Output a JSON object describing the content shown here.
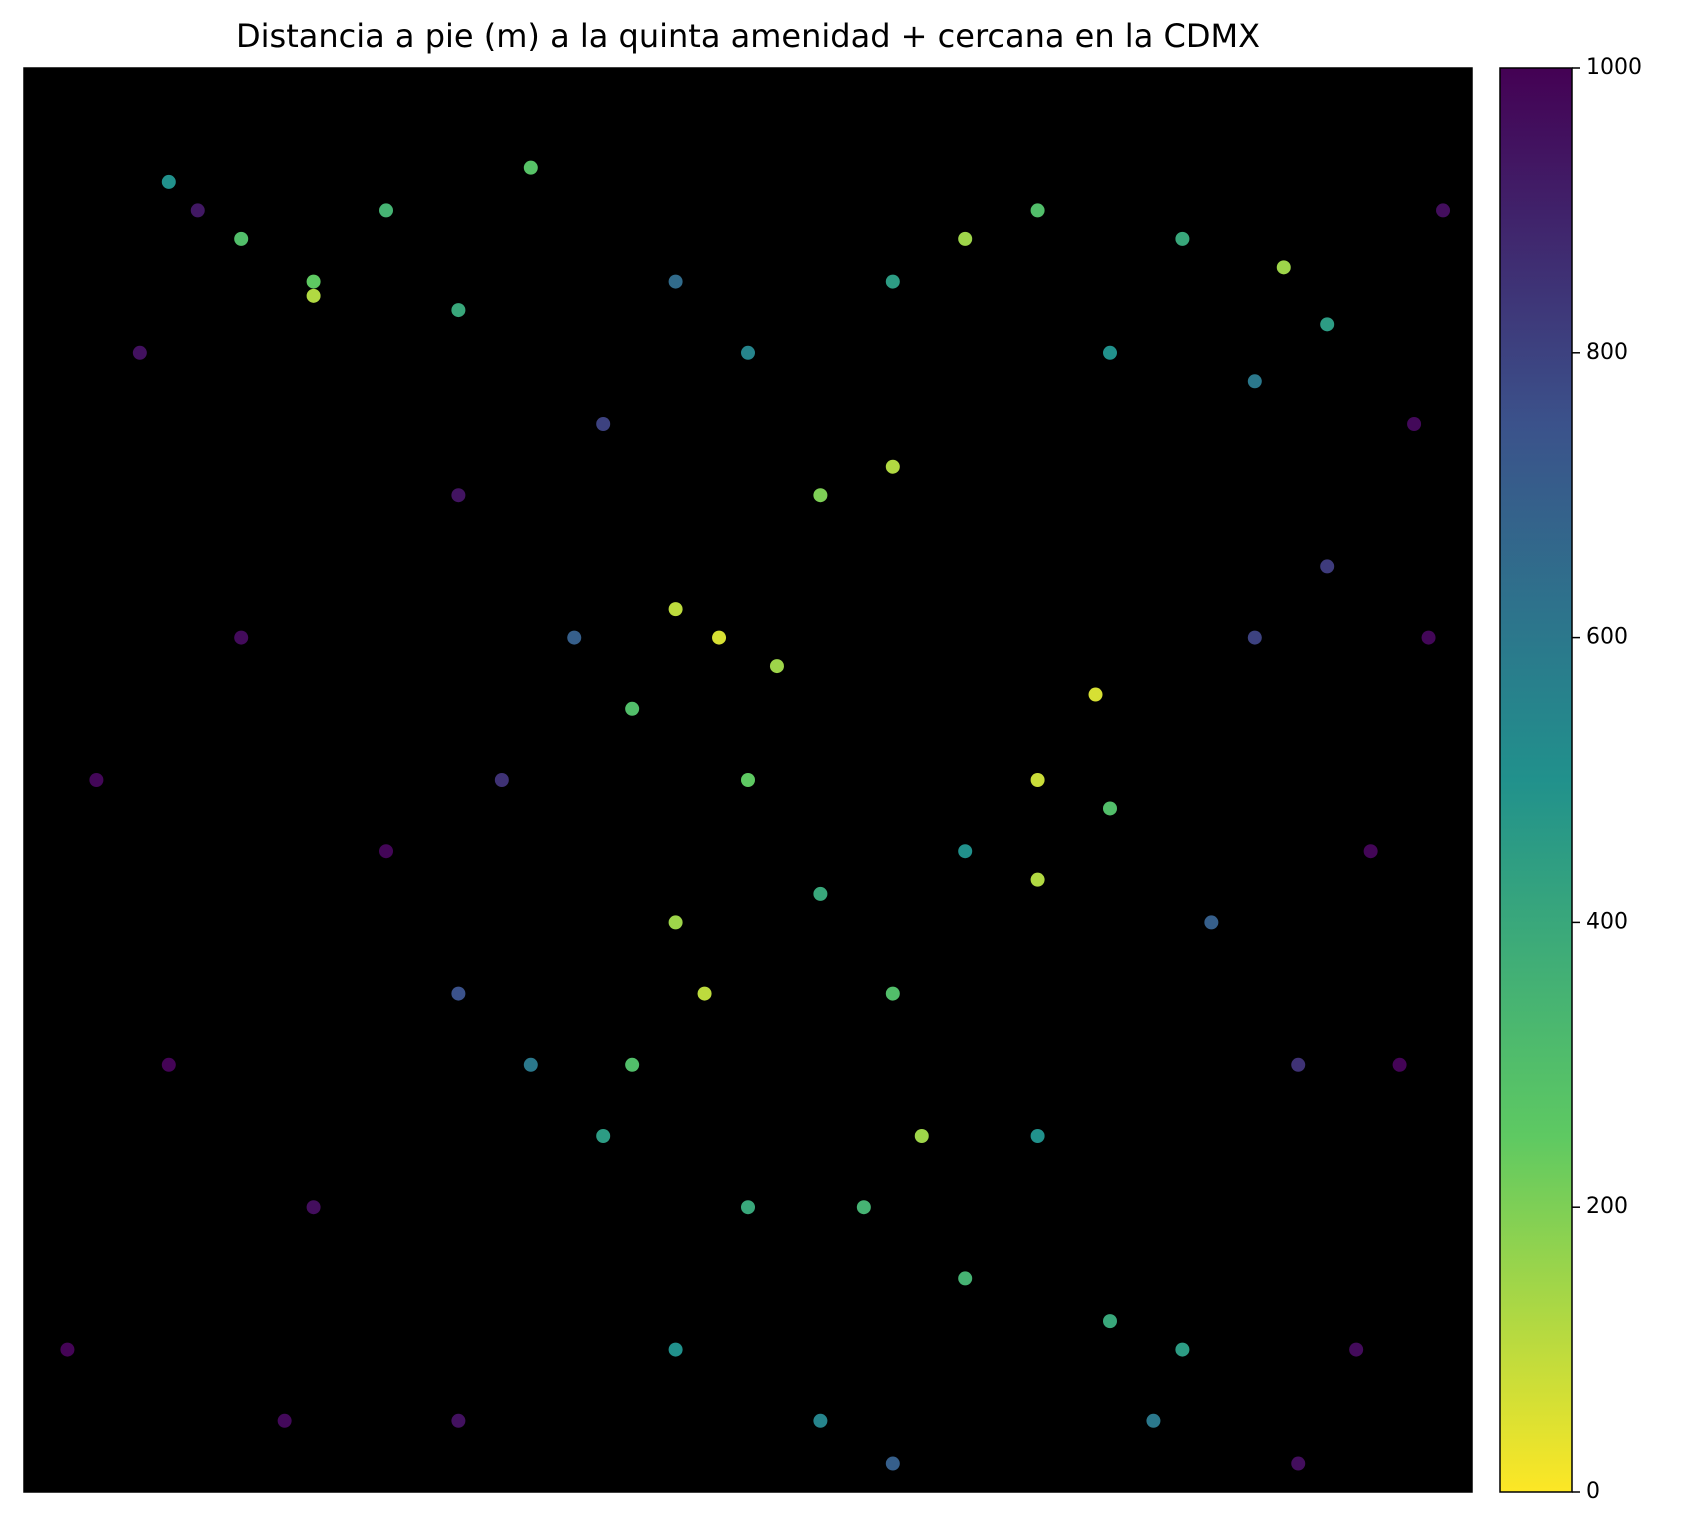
{
  "chart_data": {
    "type": "scatter",
    "title": "Distancia a pie (m) a la quinta amenidad + cercana en la CDMX",
    "xlim": [
      0,
      1
    ],
    "ylim": [
      0,
      1
    ],
    "colormap": "viridis_r",
    "clim": [
      0,
      1000
    ],
    "cticks": [
      0,
      200,
      400,
      600,
      800,
      1000
    ],
    "background": "#000000",
    "x": [
      0.05,
      0.1,
      0.15,
      0.2,
      0.08,
      0.25,
      0.03,
      0.18,
      0.3,
      0.12,
      0.2,
      0.2,
      0.15,
      0.25,
      0.3,
      0.1,
      0.35,
      0.45,
      0.48,
      0.52,
      0.55,
      0.6,
      0.42,
      0.5,
      0.45,
      0.47,
      0.55,
      0.6,
      0.65,
      0.7,
      0.74,
      0.7,
      0.75,
      0.62,
      0.58,
      0.5,
      0.4,
      0.35,
      0.42,
      0.45,
      0.55,
      0.65,
      0.75,
      0.8,
      0.78,
      0.7,
      0.65,
      0.7,
      0.8,
      0.87,
      0.75,
      0.85,
      0.9,
      0.6,
      0.5,
      0.45,
      0.38,
      0.3,
      0.85,
      0.82,
      0.88,
      0.4,
      0.33,
      0.9,
      0.95,
      0.97,
      0.92,
      0.98,
      0.93,
      0.96,
      0.3,
      0.6,
      0.88
    ],
    "y": [
      0.5,
      0.3,
      0.6,
      0.2,
      0.8,
      0.45,
      0.1,
      0.05,
      0.7,
      0.9,
      0.85,
      0.84,
      0.88,
      0.9,
      0.83,
      0.92,
      0.93,
      0.62,
      0.6,
      0.58,
      0.7,
      0.72,
      0.55,
      0.5,
      0.4,
      0.35,
      0.42,
      0.35,
      0.45,
      0.5,
      0.56,
      0.43,
      0.48,
      0.25,
      0.2,
      0.2,
      0.25,
      0.3,
      0.3,
      0.1,
      0.05,
      0.15,
      0.12,
      0.1,
      0.05,
      0.25,
      0.88,
      0.9,
      0.88,
      0.86,
      0.8,
      0.78,
      0.82,
      0.85,
      0.8,
      0.85,
      0.6,
      0.35,
      0.6,
      0.4,
      0.3,
      0.75,
      0.5,
      0.65,
      0.3,
      0.6,
      0.1,
      0.9,
      0.45,
      0.75,
      0.05,
      0.02,
      0.02
    ],
    "values": [
      980,
      990,
      970,
      960,
      950,
      985,
      990,
      975,
      940,
      930,
      250,
      120,
      300,
      350,
      400,
      500,
      280,
      100,
      60,
      150,
      200,
      120,
      300,
      250,
      150,
      100,
      400,
      300,
      500,
      80,
      60,
      120,
      300,
      150,
      350,
      400,
      450,
      600,
      300,
      500,
      550,
      350,
      400,
      450,
      600,
      500,
      150,
      300,
      400,
      150,
      500,
      600,
      450,
      450,
      550,
      650,
      700,
      750,
      800,
      700,
      850,
      800,
      850,
      820,
      990,
      980,
      970,
      960,
      985,
      975,
      950,
      700,
      960
    ]
  }
}
